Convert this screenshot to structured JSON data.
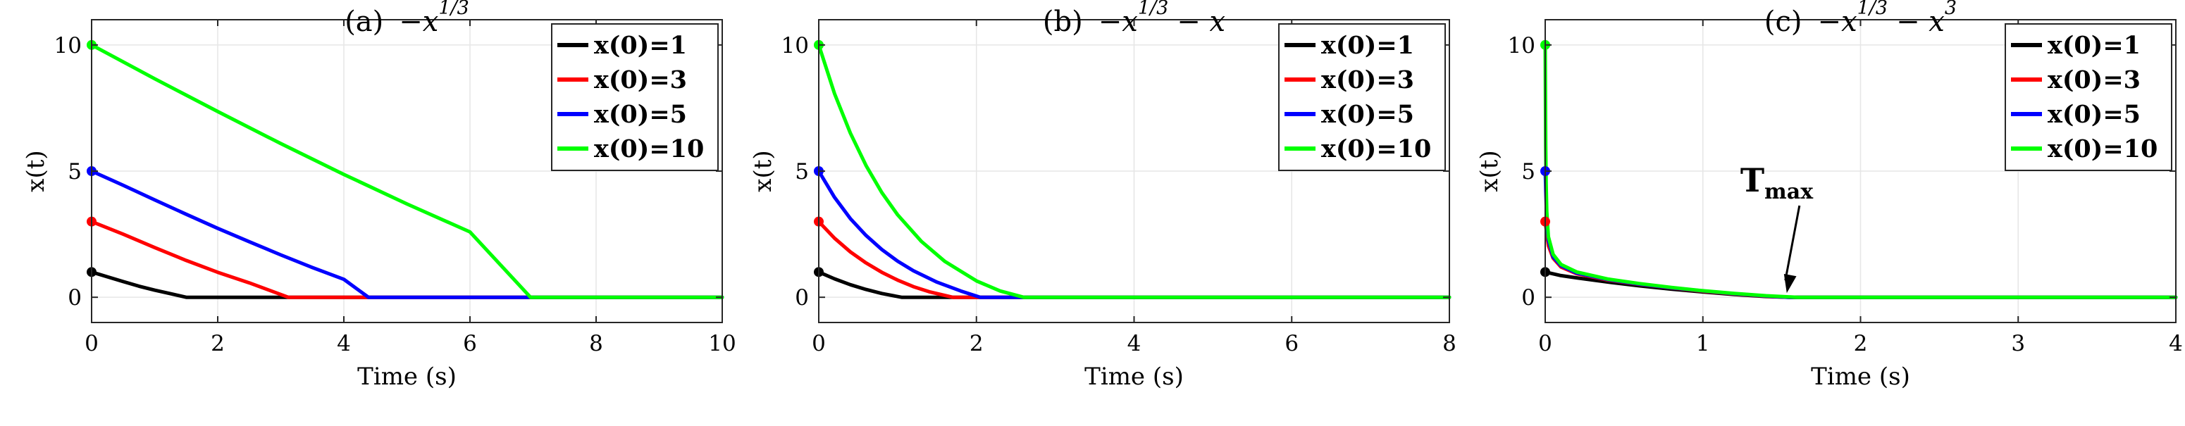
{
  "chart_data": [
    {
      "type": "line",
      "title_prefix": "(a)",
      "title": "−x",
      "title_exps": [
        "1/3"
      ],
      "title_between": [],
      "xlabel": "Time (s)",
      "ylabel": "x(t)",
      "xlim": [
        0,
        10
      ],
      "ylim": [
        -1,
        11
      ],
      "xticks": [
        0,
        2,
        4,
        6,
        8,
        10
      ],
      "yticks": [
        0,
        5,
        10
      ],
      "grid": true,
      "legend_position": "top-right",
      "series": [
        {
          "name": "x(0)=1",
          "color": "#000000",
          "x": [
            0,
            0.25,
            0.5,
            0.75,
            1.0,
            1.25,
            1.5,
            10
          ],
          "y": [
            1,
            0.81,
            0.62,
            0.44,
            0.28,
            0.14,
            0,
            0
          ]
        },
        {
          "name": "x(0)=3",
          "color": "#ff0000",
          "x": [
            0,
            0.5,
            1.0,
            1.5,
            2.0,
            2.5,
            3.12,
            10
          ],
          "y": [
            3,
            2.5,
            1.97,
            1.46,
            0.99,
            0.57,
            0,
            0
          ]
        },
        {
          "name": "x(0)=5",
          "color": "#0000ff",
          "x": [
            0,
            0.5,
            1.0,
            1.5,
            2.0,
            2.5,
            3.0,
            3.5,
            4.0,
            4.39,
            10
          ],
          "y": [
            5,
            4.44,
            3.86,
            3.29,
            2.73,
            2.2,
            1.68,
            1.18,
            0.71,
            0,
            0
          ]
        },
        {
          "name": "x(0)=10",
          "color": "#00ff00",
          "x": [
            0,
            1,
            2,
            3,
            4,
            5,
            6,
            6.96,
            10
          ],
          "y": [
            10,
            8.66,
            7.36,
            6.09,
            4.87,
            3.7,
            2.59,
            0,
            0
          ]
        }
      ]
    },
    {
      "type": "line",
      "title_prefix": "(b)",
      "title": "−x",
      "title_exps": [
        "1/3"
      ],
      "title_between": [
        "− x"
      ],
      "xlabel": "Time (s)",
      "ylabel": "x(t)",
      "xlim": [
        0,
        8
      ],
      "ylim": [
        -1,
        11
      ],
      "xticks": [
        0,
        2,
        4,
        6,
        8
      ],
      "yticks": [
        0,
        5,
        10
      ],
      "grid": true,
      "legend_position": "top-right",
      "series": [
        {
          "name": "x(0)=1",
          "color": "#000000",
          "x": [
            0,
            0.2,
            0.4,
            0.6,
            0.8,
            1.05,
            8
          ],
          "y": [
            1,
            0.73,
            0.5,
            0.31,
            0.15,
            0,
            0
          ]
        },
        {
          "name": "x(0)=3",
          "color": "#ff0000",
          "x": [
            0,
            0.2,
            0.4,
            0.6,
            0.8,
            1.0,
            1.2,
            1.4,
            1.7,
            8
          ],
          "y": [
            3,
            2.34,
            1.8,
            1.36,
            0.99,
            0.68,
            0.42,
            0.22,
            0,
            0
          ]
        },
        {
          "name": "x(0)=5",
          "color": "#0000ff",
          "x": [
            0,
            0.2,
            0.4,
            0.6,
            0.8,
            1.0,
            1.2,
            1.5,
            1.8,
            2.05,
            8
          ],
          "y": [
            5,
            3.96,
            3.12,
            2.45,
            1.89,
            1.43,
            1.05,
            0.6,
            0.25,
            0,
            0
          ]
        },
        {
          "name": "x(0)=10",
          "color": "#00ff00",
          "x": [
            0,
            0.2,
            0.4,
            0.6,
            0.8,
            1.0,
            1.3,
            1.6,
            2.0,
            2.3,
            2.6,
            8
          ],
          "y": [
            10,
            8.07,
            6.51,
            5.22,
            4.15,
            3.27,
            2.22,
            1.42,
            0.65,
            0.25,
            0,
            0
          ]
        }
      ]
    },
    {
      "type": "line",
      "title_prefix": "(c)",
      "title": "−x",
      "title_exps": [
        "1/3",
        "3"
      ],
      "title_between": [
        "− x"
      ],
      "xlabel": "Time (s)",
      "ylabel": "x(t)",
      "xlim": [
        0,
        4
      ],
      "ylim": [
        -1,
        11
      ],
      "xticks": [
        0,
        1,
        2,
        3,
        4
      ],
      "yticks": [
        0,
        5,
        10
      ],
      "grid": true,
      "legend_position": "top-right",
      "annotation": {
        "label": "T",
        "subscript": "max",
        "points_to_x": 1.55,
        "points_to_y": 0
      },
      "series": [
        {
          "name": "x(0)=1",
          "color": "#000000",
          "x": [
            0,
            0.1,
            0.2,
            0.4,
            0.6,
            0.8,
            1.0,
            1.2,
            1.4,
            1.55,
            4
          ],
          "y": [
            1,
            0.86,
            0.77,
            0.6,
            0.45,
            0.32,
            0.21,
            0.11,
            0.03,
            0,
            0
          ]
        },
        {
          "name": "x(0)=3",
          "color": "#ff0000",
          "x": [
            0,
            0.02,
            0.05,
            0.1,
            0.2,
            0.4,
            0.6,
            0.8,
            1.0,
            1.2,
            1.4,
            1.55,
            4
          ],
          "y": [
            3,
            2.05,
            1.55,
            1.2,
            0.93,
            0.68,
            0.51,
            0.37,
            0.24,
            0.13,
            0.04,
            0,
            0
          ]
        },
        {
          "name": "x(0)=5",
          "color": "#0000ff",
          "x": [
            0,
            0.01,
            0.02,
            0.05,
            0.1,
            0.2,
            0.4,
            0.6,
            0.8,
            1.0,
            1.2,
            1.4,
            1.55,
            4
          ],
          "y": [
            5,
            3.0,
            2.25,
            1.6,
            1.25,
            0.96,
            0.7,
            0.52,
            0.38,
            0.25,
            0.14,
            0.05,
            0,
            0
          ]
        },
        {
          "name": "x(0)=10",
          "color": "#00ff00",
          "x": [
            0,
            0.003,
            0.006,
            0.01,
            0.02,
            0.05,
            0.1,
            0.2,
            0.4,
            0.6,
            0.8,
            1.0,
            1.2,
            1.4,
            1.6,
            4
          ],
          "y": [
            10,
            6.0,
            4.5,
            3.4,
            2.4,
            1.7,
            1.3,
            1.0,
            0.72,
            0.54,
            0.39,
            0.26,
            0.15,
            0.06,
            0,
            0
          ]
        }
      ]
    }
  ]
}
